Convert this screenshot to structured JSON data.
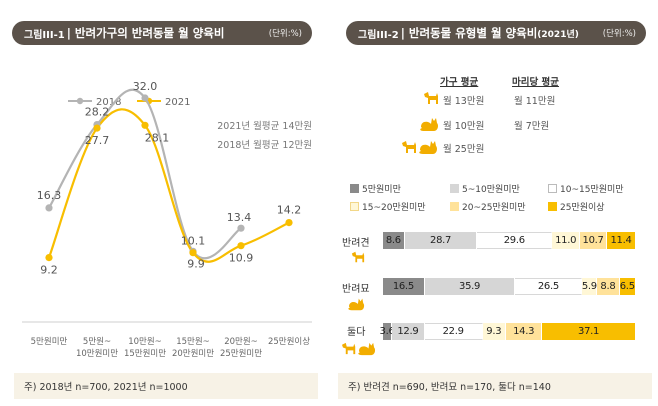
{
  "left": {
    "figure_label": "그림",
    "figure_number": "III-1",
    "title": "반려가구의 반려동물 월 양육비",
    "unit": "(단위:%)",
    "footnote": "주) 2018년 n=700, 2021년 n=1000"
  },
  "right": {
    "figure_label": "그림",
    "figure_number": "III-2",
    "title": "반려동물 유형별 월 양육비",
    "title_year": "(2021년)",
    "unit": "(단위:%)",
    "footnote": "주) 반려견 n=690, 반려묘 n=170, 둘다 n=140",
    "avg_headers": {
      "household": "가구 평균",
      "per_head": "마리당 평균"
    },
    "avg_rows": [
      {
        "animal": "dog",
        "household": "월 13만원",
        "per_head": "월 11만원"
      },
      {
        "animal": "cat",
        "household": "월 10만원",
        "per_head": "월 7만원"
      },
      {
        "animal": "both",
        "household": "월 25만원",
        "per_head": ""
      }
    ]
  },
  "colors": {
    "s2018": "#b4b4b4",
    "s2021": "#f8be00",
    "seg": [
      "#8a8a8a",
      "#d6d6d6",
      "#ffffff",
      "#fff7d6",
      "#ffe29a",
      "#f8be00"
    ],
    "title_bar": "#5b524a",
    "footnote_bg": "#f7f2e6"
  },
  "chart_data": [
    {
      "type": "line",
      "categories": [
        [
          "5만원미만"
        ],
        [
          "5만원~",
          "10만원미만"
        ],
        [
          "10만원~",
          "15만원미만"
        ],
        [
          "15만원~",
          "20만원미만"
        ],
        [
          "20만원~",
          "25만원미만"
        ],
        [
          "25만원이상"
        ]
      ],
      "series": [
        {
          "name": "2018",
          "values": [
            16.3,
            28.2,
            32.0,
            10.1,
            13.4,
            null
          ],
          "labels": [
            "16.3",
            "28.2",
            "32.0",
            "10.1",
            "13.4",
            ""
          ]
        },
        {
          "name": "2021",
          "values": [
            9.2,
            27.7,
            28.1,
            9.9,
            10.9,
            14.2
          ],
          "labels": [
            "9.2",
            "27.7",
            "28.1",
            "9.9",
            "10.9",
            "14.2"
          ]
        }
      ],
      "annotations": [
        "2021년 월평균 14만원",
        "2018년 월평균 12만원"
      ],
      "ylim": [
        0,
        40
      ]
    },
    {
      "type": "bar",
      "stacked": true,
      "orientation": "horizontal",
      "segments": [
        "5만원미만",
        "5~10만원미만",
        "10~15만원미만",
        "15~20만원미만",
        "20~25만원미만",
        "25만원이상"
      ],
      "rows": [
        {
          "name": "반려견",
          "animal": "dog",
          "values": [
            8.6,
            28.7,
            29.6,
            11.0,
            10.7,
            11.4
          ],
          "labels": [
            "8.6",
            "28.7",
            "29.6",
            "11.0",
            "10.7",
            "11.4"
          ]
        },
        {
          "name": "반려묘",
          "animal": "cat",
          "values": [
            16.5,
            35.9,
            26.5,
            5.9,
            8.8,
            6.5
          ],
          "labels": [
            "16.5",
            "35.9",
            "26.5",
            "5.9",
            "8.8",
            "6.5"
          ]
        },
        {
          "name": "둘다",
          "animal": "both",
          "values": [
            3.6,
            12.9,
            22.9,
            9.3,
            14.3,
            37.1
          ],
          "labels": [
            "3.6",
            "12.9",
            "22.9",
            "9.3",
            "14.3",
            "37.1"
          ]
        }
      ],
      "xlim": [
        0,
        100
      ]
    }
  ]
}
